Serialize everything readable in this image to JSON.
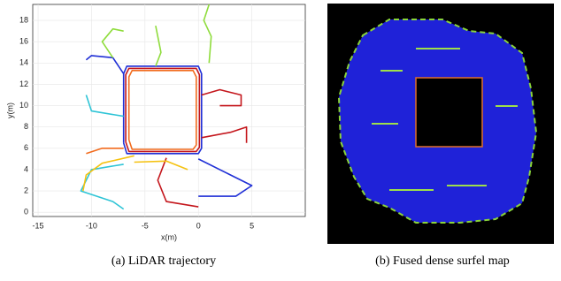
{
  "chart_data": {
    "type": "line",
    "xlabel": "x(m)",
    "ylabel": "y(m)",
    "xlim": [
      -15.5,
      10
    ],
    "ylim": [
      -0.4,
      19.5
    ],
    "xticks": [
      -15,
      -10,
      -5,
      0,
      5
    ],
    "yticks": [
      0,
      2,
      4,
      6,
      8,
      10,
      12,
      14,
      16,
      18
    ],
    "grid": true,
    "series": [
      {
        "color": "#1f2fd6",
        "x": [
          -7,
          -7,
          -6.7,
          0,
          0.3,
          0.3,
          0,
          -6.7,
          -7,
          null,
          0,
          3,
          5,
          3.5,
          0,
          null,
          -7,
          -8,
          -10,
          -10.5
        ],
        "y": [
          6.5,
          13,
          13.7,
          13.7,
          13,
          6,
          5.5,
          5.5,
          6.5,
          null,
          5,
          3.5,
          2.5,
          1.5,
          1.5,
          null,
          13,
          14.5,
          14.7,
          14.3
        ]
      },
      {
        "color": "#c4161c",
        "x": [
          -6.8,
          -6.8,
          -6.5,
          -0.2,
          0.1,
          0.1,
          -0.2,
          -6.5,
          -6.8,
          null,
          -3,
          -3.8,
          -3,
          0,
          null,
          0.3,
          2,
          4,
          4,
          2,
          null,
          0.3,
          3,
          4.5,
          4.5
        ],
        "y": [
          6.6,
          12.9,
          13.5,
          13.5,
          12.9,
          6.1,
          5.7,
          5.7,
          6.6,
          null,
          5.1,
          3,
          1,
          0.5,
          null,
          11,
          11.5,
          11,
          10,
          10,
          null,
          7,
          7.5,
          8,
          6.5
        ]
      },
      {
        "color": "#f26b1d",
        "x": [
          -6.5,
          -6.5,
          -6.2,
          -0.5,
          -0.2,
          -0.2,
          -0.5,
          -6.2,
          -6.5,
          null,
          -7,
          -9,
          -10.5
        ],
        "y": [
          6.8,
          12.7,
          13.3,
          13.3,
          12.7,
          6.3,
          5.9,
          5.9,
          6.8,
          null,
          6,
          6,
          5.5
        ]
      },
      {
        "color": "#2ec4d6",
        "x": [
          -7,
          -10,
          -11,
          -8,
          -7,
          null,
          -7,
          -10,
          -10.5
        ],
        "y": [
          4.5,
          4,
          2,
          1,
          0.3,
          null,
          9,
          9.5,
          11
        ]
      },
      {
        "color": "#8fdc3c",
        "x": [
          -8,
          -9,
          -8,
          -7,
          null,
          -4,
          -3.5,
          -4,
          null,
          1,
          1.2,
          0.5,
          1
        ],
        "y": [
          14.5,
          16,
          17.2,
          17,
          null,
          13.7,
          15,
          17.5,
          null,
          14,
          16.5,
          18,
          19.5
        ]
      },
      {
        "color": "#f5c211",
        "x": [
          -6,
          -9,
          -10.5,
          -10.8,
          null,
          -6,
          -3,
          -1
        ],
        "y": [
          5.3,
          4.6,
          3.5,
          2,
          null,
          4.7,
          4.8,
          4
        ]
      }
    ]
  },
  "captions": [
    "(a) LiDAR trajectory",
    "(b) Fused dense surfel map"
  ]
}
